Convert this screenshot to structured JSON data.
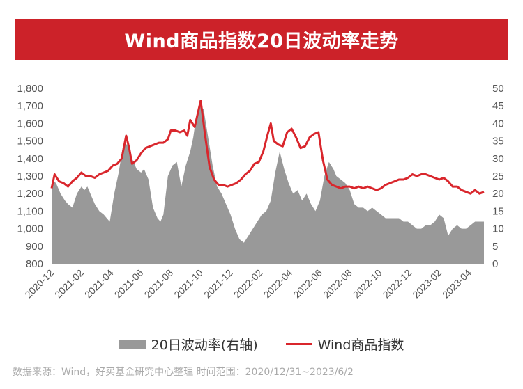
{
  "title": "Wind商品指数20日波动率走势",
  "legend": {
    "area_label": "20日波动率(右轴)",
    "line_label": "Wind商品指数"
  },
  "source": "数据来源：Wind，好买基金研究中心整理 时间范围：2020/12/31~2023/6/2",
  "colors": {
    "banner": "#cc2229",
    "line": "#d9262c",
    "area": "#999999"
  },
  "chart_data": {
    "type": "line",
    "title": "Wind商品指数20日波动率走势",
    "x_tick_labels": [
      "2020-12",
      "2021-02",
      "2021-04",
      "2021-06",
      "2021-08",
      "2021-10",
      "2021-12",
      "2022-02",
      "2022-04",
      "2022-06",
      "2022-08",
      "2022-10",
      "2022-12",
      "2023-02",
      "2023-04"
    ],
    "y_left": {
      "min": 800,
      "max": 1800,
      "ticks": [
        800,
        900,
        1000,
        1100,
        1200,
        1300,
        1400,
        1500,
        1600,
        1700,
        1800
      ],
      "tick_labels": [
        "800",
        "900",
        "1,000",
        "1,100",
        "1,200",
        "1,300",
        "1,400",
        "1,500",
        "1,600",
        "1,700",
        "1,800"
      ]
    },
    "y_right": {
      "min": 0,
      "max": 50,
      "ticks": [
        0,
        5,
        10,
        15,
        20,
        25,
        30,
        35,
        40,
        45,
        50
      ],
      "tick_labels": [
        "0",
        "5",
        "10",
        "15",
        "20",
        "25",
        "30",
        "35",
        "40",
        "45",
        "50"
      ]
    },
    "x_range": [
      0,
      29
    ],
    "grid": false,
    "legend_position": "bottom",
    "series": [
      {
        "name": "20日波动率(右轴)",
        "type": "area",
        "axis": "right",
        "points": [
          [
            0,
            24
          ],
          [
            0.3,
            23
          ],
          [
            0.6,
            20
          ],
          [
            0.9,
            18
          ],
          [
            1.1,
            17
          ],
          [
            1.4,
            16
          ],
          [
            1.7,
            20
          ],
          [
            2,
            22
          ],
          [
            2.2,
            21
          ],
          [
            2.4,
            22
          ],
          [
            2.7,
            19
          ],
          [
            2.9,
            17
          ],
          [
            3.2,
            15
          ],
          [
            3.5,
            14
          ],
          [
            3.7,
            13
          ],
          [
            3.9,
            12
          ],
          [
            4.2,
            20
          ],
          [
            4.5,
            26
          ],
          [
            4.8,
            34
          ],
          [
            5.1,
            34
          ],
          [
            5.4,
            30
          ],
          [
            5.7,
            27
          ],
          [
            6,
            26
          ],
          [
            6.2,
            27
          ],
          [
            6.5,
            24
          ],
          [
            6.8,
            16
          ],
          [
            7.1,
            13
          ],
          [
            7.3,
            12
          ],
          [
            7.5,
            14
          ],
          [
            7.8,
            25
          ],
          [
            8.1,
            28
          ],
          [
            8.4,
            29
          ],
          [
            8.7,
            22
          ],
          [
            9,
            28
          ],
          [
            9.3,
            32
          ],
          [
            9.5,
            36
          ],
          [
            9.7,
            42
          ],
          [
            10,
            45
          ],
          [
            10.2,
            44
          ],
          [
            10.5,
            36
          ],
          [
            10.8,
            28
          ],
          [
            11.1,
            22
          ],
          [
            11.4,
            20
          ],
          [
            11.7,
            17
          ],
          [
            12,
            14
          ],
          [
            12.3,
            10
          ],
          [
            12.6,
            7
          ],
          [
            12.9,
            6
          ],
          [
            13.2,
            8
          ],
          [
            13.5,
            10
          ],
          [
            13.8,
            12
          ],
          [
            14.1,
            14
          ],
          [
            14.4,
            15
          ],
          [
            14.7,
            18
          ],
          [
            15,
            26
          ],
          [
            15.3,
            32
          ],
          [
            15.6,
            27
          ],
          [
            15.9,
            23
          ],
          [
            16.2,
            20
          ],
          [
            16.5,
            21
          ],
          [
            16.8,
            18
          ],
          [
            17.1,
            20
          ],
          [
            17.4,
            17
          ],
          [
            17.7,
            15
          ],
          [
            18,
            18
          ],
          [
            18.3,
            25
          ],
          [
            18.6,
            29
          ],
          [
            18.9,
            27
          ],
          [
            19.1,
            25
          ],
          [
            19.4,
            24
          ],
          [
            19.7,
            23
          ],
          [
            20,
            21
          ],
          [
            20.3,
            17
          ],
          [
            20.6,
            16
          ],
          [
            20.9,
            16
          ],
          [
            21.2,
            15
          ],
          [
            21.5,
            16
          ],
          [
            21.8,
            15
          ],
          [
            22.1,
            14
          ],
          [
            22.4,
            13
          ],
          [
            22.7,
            13
          ],
          [
            23,
            13
          ],
          [
            23.3,
            13
          ],
          [
            23.6,
            12
          ],
          [
            23.9,
            12
          ],
          [
            24.2,
            11
          ],
          [
            24.5,
            10
          ],
          [
            24.8,
            10
          ],
          [
            25.1,
            11
          ],
          [
            25.4,
            11
          ],
          [
            25.7,
            12
          ],
          [
            26,
            14
          ],
          [
            26.3,
            13
          ],
          [
            26.6,
            8
          ],
          [
            26.9,
            10
          ],
          [
            27.2,
            11
          ],
          [
            27.5,
            10
          ],
          [
            27.8,
            10
          ],
          [
            28.1,
            11
          ],
          [
            28.4,
            12
          ],
          [
            28.7,
            12
          ],
          [
            29,
            12
          ]
        ]
      },
      {
        "name": "Wind商品指数",
        "type": "line",
        "axis": "left",
        "points": [
          [
            0,
            1230
          ],
          [
            0.2,
            1310
          ],
          [
            0.5,
            1270
          ],
          [
            0.8,
            1260
          ],
          [
            1.1,
            1240
          ],
          [
            1.4,
            1270
          ],
          [
            1.7,
            1290
          ],
          [
            2,
            1320
          ],
          [
            2.3,
            1300
          ],
          [
            2.6,
            1300
          ],
          [
            2.9,
            1290
          ],
          [
            3.2,
            1310
          ],
          [
            3.5,
            1320
          ],
          [
            3.8,
            1330
          ],
          [
            4.1,
            1360
          ],
          [
            4.4,
            1370
          ],
          [
            4.7,
            1400
          ],
          [
            5,
            1530
          ],
          [
            5.2,
            1460
          ],
          [
            5.4,
            1370
          ],
          [
            5.7,
            1390
          ],
          [
            6,
            1430
          ],
          [
            6.3,
            1460
          ],
          [
            6.6,
            1470
          ],
          [
            6.9,
            1480
          ],
          [
            7.2,
            1490
          ],
          [
            7.5,
            1490
          ],
          [
            7.8,
            1510
          ],
          [
            8,
            1560
          ],
          [
            8.3,
            1560
          ],
          [
            8.6,
            1550
          ],
          [
            8.9,
            1560
          ],
          [
            9.1,
            1530
          ],
          [
            9.3,
            1620
          ],
          [
            9.6,
            1580
          ],
          [
            10,
            1730
          ],
          [
            10.3,
            1530
          ],
          [
            10.6,
            1350
          ],
          [
            10.9,
            1280
          ],
          [
            11.2,
            1250
          ],
          [
            11.5,
            1250
          ],
          [
            11.8,
            1240
          ],
          [
            12.1,
            1250
          ],
          [
            12.4,
            1260
          ],
          [
            12.7,
            1280
          ],
          [
            13,
            1310
          ],
          [
            13.3,
            1330
          ],
          [
            13.6,
            1370
          ],
          [
            13.9,
            1380
          ],
          [
            14.2,
            1440
          ],
          [
            14.5,
            1540
          ],
          [
            14.7,
            1600
          ],
          [
            14.9,
            1500
          ],
          [
            15.2,
            1480
          ],
          [
            15.5,
            1470
          ],
          [
            15.8,
            1550
          ],
          [
            16.1,
            1570
          ],
          [
            16.4,
            1520
          ],
          [
            16.7,
            1460
          ],
          [
            17,
            1470
          ],
          [
            17.3,
            1520
          ],
          [
            17.6,
            1540
          ],
          [
            17.9,
            1550
          ],
          [
            18.2,
            1390
          ],
          [
            18.5,
            1280
          ],
          [
            18.8,
            1250
          ],
          [
            19.1,
            1240
          ],
          [
            19.4,
            1230
          ],
          [
            19.7,
            1240
          ],
          [
            20,
            1240
          ],
          [
            20.3,
            1230
          ],
          [
            20.6,
            1240
          ],
          [
            20.9,
            1230
          ],
          [
            21.2,
            1240
          ],
          [
            21.5,
            1230
          ],
          [
            21.8,
            1220
          ],
          [
            22.1,
            1230
          ],
          [
            22.4,
            1250
          ],
          [
            22.7,
            1260
          ],
          [
            23,
            1270
          ],
          [
            23.3,
            1280
          ],
          [
            23.6,
            1280
          ],
          [
            23.9,
            1290
          ],
          [
            24.2,
            1310
          ],
          [
            24.5,
            1300
          ],
          [
            24.8,
            1310
          ],
          [
            25.1,
            1310
          ],
          [
            25.4,
            1300
          ],
          [
            25.7,
            1290
          ],
          [
            26,
            1280
          ],
          [
            26.3,
            1290
          ],
          [
            26.6,
            1270
          ],
          [
            26.9,
            1240
          ],
          [
            27.2,
            1240
          ],
          [
            27.5,
            1220
          ],
          [
            27.8,
            1210
          ],
          [
            28.1,
            1200
          ],
          [
            28.4,
            1220
          ],
          [
            28.7,
            1200
          ],
          [
            29,
            1210
          ]
        ]
      }
    ]
  }
}
